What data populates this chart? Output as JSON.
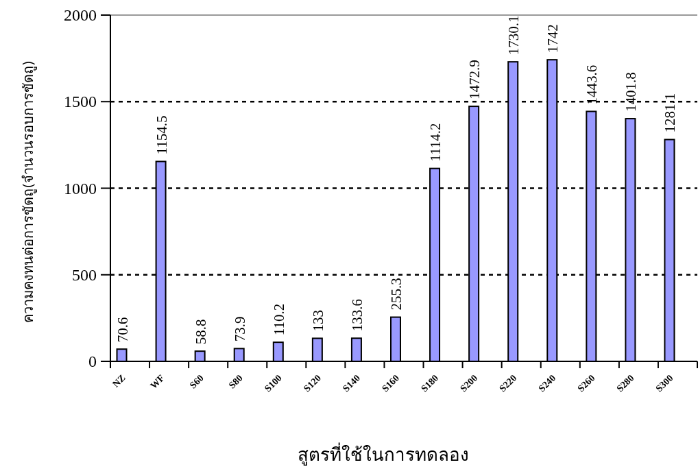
{
  "chart_data": {
    "type": "bar",
    "xlabel": "สูตรที่ใช้ในการทดลอง",
    "ylabel": "ความคงทนต่อการขัดถู(จำนวนรอบการขัดถู)",
    "categories": [
      "NZ",
      "WF",
      "S60",
      "S80",
      "S100",
      "S120",
      "S140",
      "S160",
      "S180",
      "S200",
      "S220",
      "S240",
      "S260",
      "S280",
      "S300"
    ],
    "values": [
      70.6,
      1154.5,
      58.8,
      73.9,
      110.2,
      133,
      133.6,
      255.3,
      1114.2,
      1472.9,
      1730.1,
      1742,
      1443.6,
      1401.8,
      1281.1
    ],
    "color": "#9999ff",
    "ylim": [
      0,
      2000
    ],
    "yticks": [
      0,
      500,
      1000,
      1500,
      2000
    ],
    "grid": "y",
    "data_labels": true
  }
}
